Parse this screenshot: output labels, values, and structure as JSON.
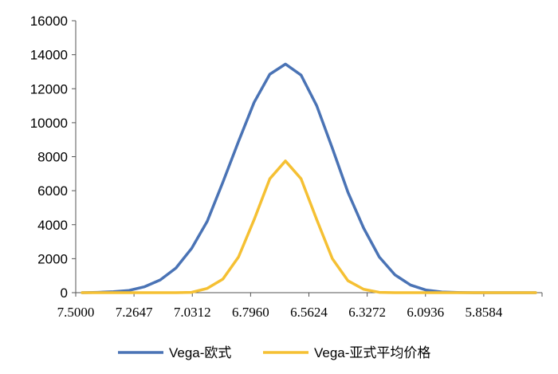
{
  "chart_data": {
    "type": "line",
    "title": "",
    "xlabel": "",
    "ylabel": "",
    "ylim": [
      0,
      16000
    ],
    "yticks": [
      0,
      2000,
      4000,
      6000,
      8000,
      10000,
      12000,
      14000,
      16000
    ],
    "xtick_labels": [
      "7.5000",
      "7.2647",
      "7.0312",
      "6.7960",
      "6.5624",
      "6.3272",
      "6.0936",
      "5.8584"
    ],
    "grid": false,
    "legend_position": "bottom",
    "series": [
      {
        "name": "Vega-欧式",
        "color": "#4a73b5",
        "values": [
          0,
          20,
          60,
          130,
          350,
          750,
          1450,
          2600,
          4200,
          6500,
          8900,
          11200,
          12850,
          13450,
          12800,
          11000,
          8500,
          5900,
          3800,
          2100,
          1050,
          450,
          150,
          40,
          10,
          0,
          0,
          0,
          0,
          0
        ]
      },
      {
        "name": "Vega-亚式平均价格",
        "color": "#f5c033",
        "values": [
          0,
          0,
          0,
          0,
          0,
          0,
          0,
          20,
          250,
          800,
          2100,
          4300,
          6700,
          7750,
          6700,
          4300,
          2000,
          700,
          200,
          20,
          0,
          0,
          0,
          0,
          0,
          0,
          0,
          0,
          0,
          0
        ]
      }
    ]
  }
}
